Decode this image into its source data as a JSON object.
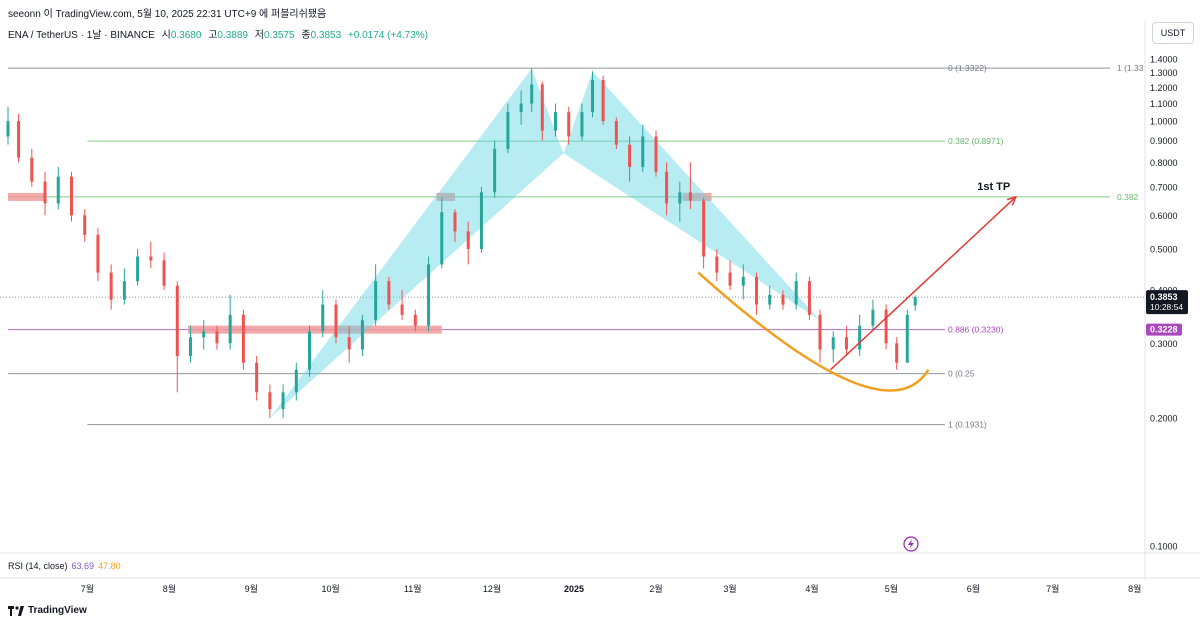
{
  "header": {
    "caption": "seeonn 이 TradingView.com, 5월 10, 2025 22:31 UTC+9 에 퍼블리쉬됐음",
    "symbol": "ENA / TetherUS · 1날 · BINANCE",
    "open_label": "시",
    "open_value": "0.3680",
    "high_label": "고",
    "high_value": "0.3889",
    "low_label": "저",
    "low_value": "0.3575",
    "close_label": "종",
    "close_value": "0.3853",
    "change": "+0.0174 (+4.73%)",
    "currency": "USDT"
  },
  "rsi": {
    "label": "RSI (14, close)",
    "value": "63.69",
    "ma": "47.80"
  },
  "footer": {
    "brand": "TradingView"
  },
  "price_badges": {
    "last": "0.3853",
    "countdown": "10:28:54",
    "level": "0.3228"
  },
  "colors": {
    "up": "#26a69a",
    "down": "#ef5350",
    "harmonic": "#5fd4e4",
    "fib_green": "#66bb6a",
    "fib_purple": "#ab47bc",
    "target_arrow": "#e53935",
    "cup": "#f0a020",
    "zone": "#ef9a9a"
  },
  "chart_data": {
    "type": "candlestick",
    "y_scale": "log",
    "ylim": [
      0.1,
      1.4
    ],
    "y_ticks": [
      "0.1000",
      "0.2000",
      "0.3000",
      "0.4000",
      "0.5000",
      "0.6000",
      "0.7000",
      "0.8000",
      "0.9000",
      "1.0000",
      "1.1000",
      "1.2000",
      "1.3000",
      "1.4000"
    ],
    "x_ticks": [
      "7월",
      "8월",
      "9월",
      "10월",
      "11월",
      "12월",
      "2025",
      "2월",
      "3월",
      "4월",
      "5월",
      "6월",
      "7월",
      "8월"
    ],
    "x_tick_dates": [
      "2024-07-01",
      "2024-08-01",
      "2024-09-01",
      "2024-10-01",
      "2024-11-01",
      "2024-12-01",
      "2025-01-01",
      "2025-02-01",
      "2025-03-01",
      "2025-04-01",
      "2025-05-01",
      "2025-06-01",
      "2025-07-01",
      "2025-08-01"
    ],
    "candles": [
      {
        "t": "2024-06-01",
        "o": 0.92,
        "h": 1.08,
        "l": 0.88,
        "c": 1.0
      },
      {
        "t": "2024-06-05",
        "o": 1.0,
        "h": 1.04,
        "l": 0.8,
        "c": 0.82
      },
      {
        "t": "2024-06-10",
        "o": 0.82,
        "h": 0.86,
        "l": 0.7,
        "c": 0.72
      },
      {
        "t": "2024-06-15",
        "o": 0.72,
        "h": 0.76,
        "l": 0.6,
        "c": 0.64
      },
      {
        "t": "2024-06-20",
        "o": 0.64,
        "h": 0.78,
        "l": 0.62,
        "c": 0.74
      },
      {
        "t": "2024-06-25",
        "o": 0.74,
        "h": 0.76,
        "l": 0.58,
        "c": 0.6
      },
      {
        "t": "2024-06-30",
        "o": 0.6,
        "h": 0.62,
        "l": 0.52,
        "c": 0.54
      },
      {
        "t": "2024-07-05",
        "o": 0.54,
        "h": 0.56,
        "l": 0.42,
        "c": 0.44
      },
      {
        "t": "2024-07-10",
        "o": 0.44,
        "h": 0.46,
        "l": 0.36,
        "c": 0.38
      },
      {
        "t": "2024-07-15",
        "o": 0.38,
        "h": 0.45,
        "l": 0.37,
        "c": 0.42
      },
      {
        "t": "2024-07-20",
        "o": 0.42,
        "h": 0.5,
        "l": 0.41,
        "c": 0.48
      },
      {
        "t": "2024-07-25",
        "o": 0.48,
        "h": 0.52,
        "l": 0.45,
        "c": 0.47
      },
      {
        "t": "2024-07-30",
        "o": 0.47,
        "h": 0.49,
        "l": 0.4,
        "c": 0.41
      },
      {
        "t": "2024-08-04",
        "o": 0.41,
        "h": 0.42,
        "l": 0.23,
        "c": 0.28
      },
      {
        "t": "2024-08-09",
        "o": 0.28,
        "h": 0.33,
        "l": 0.27,
        "c": 0.31
      },
      {
        "t": "2024-08-14",
        "o": 0.31,
        "h": 0.34,
        "l": 0.29,
        "c": 0.32
      },
      {
        "t": "2024-08-19",
        "o": 0.32,
        "h": 0.33,
        "l": 0.29,
        "c": 0.3
      },
      {
        "t": "2024-08-24",
        "o": 0.3,
        "h": 0.39,
        "l": 0.29,
        "c": 0.35
      },
      {
        "t": "2024-08-29",
        "o": 0.35,
        "h": 0.36,
        "l": 0.26,
        "c": 0.27
      },
      {
        "t": "2024-09-03",
        "o": 0.27,
        "h": 0.28,
        "l": 0.22,
        "c": 0.23
      },
      {
        "t": "2024-09-08",
        "o": 0.23,
        "h": 0.24,
        "l": 0.2,
        "c": 0.21
      },
      {
        "t": "2024-09-13",
        "o": 0.21,
        "h": 0.24,
        "l": 0.2,
        "c": 0.23
      },
      {
        "t": "2024-09-18",
        "o": 0.23,
        "h": 0.27,
        "l": 0.22,
        "c": 0.26
      },
      {
        "t": "2024-09-23",
        "o": 0.26,
        "h": 0.33,
        "l": 0.25,
        "c": 0.32
      },
      {
        "t": "2024-09-28",
        "o": 0.32,
        "h": 0.4,
        "l": 0.31,
        "c": 0.37
      },
      {
        "t": "2024-10-03",
        "o": 0.37,
        "h": 0.38,
        "l": 0.3,
        "c": 0.31
      },
      {
        "t": "2024-10-08",
        "o": 0.31,
        "h": 0.33,
        "l": 0.27,
        "c": 0.29
      },
      {
        "t": "2024-10-13",
        "o": 0.29,
        "h": 0.35,
        "l": 0.28,
        "c": 0.34
      },
      {
        "t": "2024-10-18",
        "o": 0.34,
        "h": 0.46,
        "l": 0.33,
        "c": 0.42
      },
      {
        "t": "2024-10-23",
        "o": 0.42,
        "h": 0.43,
        "l": 0.36,
        "c": 0.37
      },
      {
        "t": "2024-10-28",
        "o": 0.37,
        "h": 0.4,
        "l": 0.34,
        "c": 0.35
      },
      {
        "t": "2024-11-02",
        "o": 0.35,
        "h": 0.36,
        "l": 0.32,
        "c": 0.33
      },
      {
        "t": "2024-11-07",
        "o": 0.33,
        "h": 0.48,
        "l": 0.32,
        "c": 0.46
      },
      {
        "t": "2024-11-12",
        "o": 0.46,
        "h": 0.66,
        "l": 0.45,
        "c": 0.61
      },
      {
        "t": "2024-11-17",
        "o": 0.61,
        "h": 0.62,
        "l": 0.52,
        "c": 0.55
      },
      {
        "t": "2024-11-22",
        "o": 0.55,
        "h": 0.58,
        "l": 0.46,
        "c": 0.5
      },
      {
        "t": "2024-11-27",
        "o": 0.5,
        "h": 0.7,
        "l": 0.49,
        "c": 0.68
      },
      {
        "t": "2024-12-02",
        "o": 0.68,
        "h": 0.9,
        "l": 0.66,
        "c": 0.86
      },
      {
        "t": "2024-12-07",
        "o": 0.86,
        "h": 1.1,
        "l": 0.84,
        "c": 1.05
      },
      {
        "t": "2024-12-12",
        "o": 1.05,
        "h": 1.18,
        "l": 0.98,
        "c": 1.1
      },
      {
        "t": "2024-12-16",
        "o": 1.1,
        "h": 1.33,
        "l": 1.05,
        "c": 1.22
      },
      {
        "t": "2024-12-20",
        "o": 1.22,
        "h": 1.24,
        "l": 0.9,
        "c": 0.95
      },
      {
        "t": "2024-12-25",
        "o": 0.95,
        "h": 1.1,
        "l": 0.92,
        "c": 1.05
      },
      {
        "t": "2024-12-30",
        "o": 1.05,
        "h": 1.08,
        "l": 0.88,
        "c": 0.92
      },
      {
        "t": "2025-01-04",
        "o": 0.92,
        "h": 1.1,
        "l": 0.9,
        "c": 1.05
      },
      {
        "t": "2025-01-08",
        "o": 1.05,
        "h": 1.31,
        "l": 1.02,
        "c": 1.25
      },
      {
        "t": "2025-01-12",
        "o": 1.25,
        "h": 1.28,
        "l": 0.98,
        "c": 1.0
      },
      {
        "t": "2025-01-17",
        "o": 1.0,
        "h": 1.02,
        "l": 0.86,
        "c": 0.88
      },
      {
        "t": "2025-01-22",
        "o": 0.88,
        "h": 0.92,
        "l": 0.72,
        "c": 0.78
      },
      {
        "t": "2025-01-27",
        "o": 0.78,
        "h": 0.98,
        "l": 0.76,
        "c": 0.92
      },
      {
        "t": "2025-02-01",
        "o": 0.92,
        "h": 0.95,
        "l": 0.74,
        "c": 0.76
      },
      {
        "t": "2025-02-05",
        "o": 0.76,
        "h": 0.8,
        "l": 0.6,
        "c": 0.64
      },
      {
        "t": "2025-02-10",
        "o": 0.64,
        "h": 0.72,
        "l": 0.58,
        "c": 0.68
      },
      {
        "t": "2025-02-14",
        "o": 0.68,
        "h": 0.8,
        "l": 0.62,
        "c": 0.65
      },
      {
        "t": "2025-02-19",
        "o": 0.65,
        "h": 0.66,
        "l": 0.45,
        "c": 0.48
      },
      {
        "t": "2025-02-24",
        "o": 0.48,
        "h": 0.5,
        "l": 0.42,
        "c": 0.44
      },
      {
        "t": "2025-03-01",
        "o": 0.44,
        "h": 0.47,
        "l": 0.4,
        "c": 0.41
      },
      {
        "t": "2025-03-06",
        "o": 0.41,
        "h": 0.46,
        "l": 0.38,
        "c": 0.43
      },
      {
        "t": "2025-03-11",
        "o": 0.43,
        "h": 0.44,
        "l": 0.35,
        "c": 0.37
      },
      {
        "t": "2025-03-16",
        "o": 0.37,
        "h": 0.41,
        "l": 0.36,
        "c": 0.39
      },
      {
        "t": "2025-03-21",
        "o": 0.39,
        "h": 0.4,
        "l": 0.36,
        "c": 0.37
      },
      {
        "t": "2025-03-26",
        "o": 0.37,
        "h": 0.44,
        "l": 0.36,
        "c": 0.42
      },
      {
        "t": "2025-03-31",
        "o": 0.42,
        "h": 0.43,
        "l": 0.34,
        "c": 0.35
      },
      {
        "t": "2025-04-04",
        "o": 0.35,
        "h": 0.36,
        "l": 0.27,
        "c": 0.29
      },
      {
        "t": "2025-04-09",
        "o": 0.29,
        "h": 0.32,
        "l": 0.27,
        "c": 0.31
      },
      {
        "t": "2025-04-14",
        "o": 0.31,
        "h": 0.33,
        "l": 0.28,
        "c": 0.29
      },
      {
        "t": "2025-04-19",
        "o": 0.29,
        "h": 0.35,
        "l": 0.28,
        "c": 0.33
      },
      {
        "t": "2025-04-24",
        "o": 0.33,
        "h": 0.38,
        "l": 0.32,
        "c": 0.36
      },
      {
        "t": "2025-04-29",
        "o": 0.36,
        "h": 0.37,
        "l": 0.29,
        "c": 0.3
      },
      {
        "t": "2025-05-03",
        "o": 0.3,
        "h": 0.31,
        "l": 0.26,
        "c": 0.27
      },
      {
        "t": "2025-05-07",
        "o": 0.27,
        "h": 0.36,
        "l": 0.27,
        "c": 0.35
      },
      {
        "t": "2025-05-10",
        "o": 0.368,
        "h": 0.3889,
        "l": 0.3575,
        "c": 0.3853
      }
    ],
    "harmonic_pattern": {
      "points": [
        {
          "t": "2024-09-08",
          "price": 0.2
        },
        {
          "t": "2024-12-16",
          "price": 1.33
        },
        {
          "t": "2024-12-28",
          "price": 0.84
        },
        {
          "t": "2025-01-08",
          "price": 1.31
        },
        {
          "t": "2025-04-04",
          "price": 0.34
        }
      ]
    },
    "fib_levels": [
      {
        "label": "0 (1.3322)",
        "price": 1.3322,
        "color": "#787b86",
        "from": "2024-06-01"
      },
      {
        "label": "1 (1.33",
        "price": 1.3322,
        "color": "#787b86",
        "from": "2025-07-25",
        "text_only": true
      },
      {
        "label": "0.382 (0.8971)",
        "price": 0.8971,
        "color": "#66bb6a",
        "from": "2024-07-01"
      },
      {
        "label": "0.382",
        "price": 0.663,
        "color": "#66bb6a",
        "from": "2024-06-01"
      },
      {
        "label": "0.886 (0.3230)",
        "price": 0.323,
        "color": "#ab47bc",
        "from": "2024-06-01"
      },
      {
        "label": "0 (0.25",
        "price": 0.2545,
        "color": "#787b86",
        "from": "2024-06-01"
      },
      {
        "label": "1 (0.1931)",
        "price": 0.1931,
        "color": "#787b86",
        "from": "2024-07-01"
      }
    ],
    "current_price_line": 0.3853,
    "zones": [
      {
        "from": "2024-06-01",
        "to": "2024-06-15",
        "price": 0.663
      },
      {
        "from": "2024-11-10",
        "to": "2024-11-17",
        "price": 0.663
      },
      {
        "from": "2025-02-11",
        "to": "2025-02-22",
        "price": 0.663
      },
      {
        "from": "2024-08-08",
        "to": "2024-11-12",
        "price": 0.323
      }
    ],
    "target": {
      "label": "1st TP",
      "from_t": "2025-04-08",
      "from_price": 0.26,
      "to_t": "2025-06-17",
      "to_price": 0.663
    },
    "cup_curve": {
      "from_t": "2025-02-17",
      "from_price": 0.44,
      "mid_t": "2025-04-15",
      "mid_price": 0.245,
      "to_t": "2025-05-15",
      "to_price": 0.26
    }
  }
}
